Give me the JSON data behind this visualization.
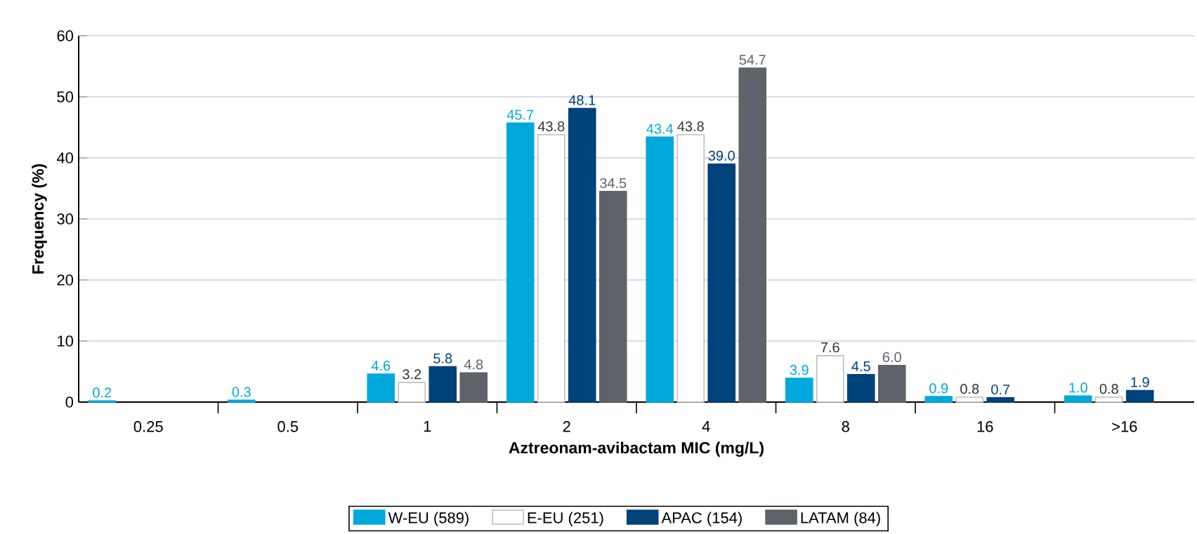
{
  "chart_data": {
    "type": "bar",
    "xlabel": "Aztreonam-avibactam MIC (mg/L)",
    "ylabel": "Frequency (%)",
    "categories": [
      "0.25",
      "0.5",
      "1",
      "2",
      "4",
      "8",
      "16",
      ">16"
    ],
    "series": [
      {
        "name": "W-EU (589)",
        "color": "#00a8dc",
        "values": [
          0.2,
          0.3,
          4.6,
          45.7,
          43.4,
          3.9,
          0.9,
          1.0
        ],
        "value_labels": [
          "0.2",
          "0.3",
          "4.6",
          "45.7",
          "43.4",
          "3.9",
          "0.9",
          "1.0"
        ]
      },
      {
        "name": "E-EU (251)",
        "color": "#ffffff",
        "values": [
          null,
          null,
          3.2,
          43.8,
          43.8,
          7.6,
          0.8,
          0.8
        ],
        "value_labels": [
          null,
          null,
          "3.2",
          "43.8",
          "43.8",
          "7.6",
          "0.8",
          "0.8"
        ]
      },
      {
        "name": "APAC (154)",
        "color": "#00427a",
        "values": [
          null,
          null,
          5.8,
          48.1,
          39.0,
          4.5,
          0.7,
          1.9
        ],
        "value_labels": [
          null,
          null,
          "5.8",
          "48.1",
          "39.0",
          "4.5",
          "0.7",
          "1.9"
        ]
      },
      {
        "name": "LATAM (84)",
        "color": "#5f6369",
        "values": [
          null,
          null,
          4.8,
          34.5,
          54.7,
          6.0,
          null,
          null
        ],
        "value_labels": [
          null,
          null,
          "4.8",
          "34.5",
          "54.7",
          "6.0",
          null,
          null
        ]
      }
    ],
    "ylim": [
      0,
      60
    ],
    "yticks": [
      0,
      10,
      20,
      30,
      40,
      50,
      60
    ],
    "grid": "y",
    "legend": "bottom"
  }
}
